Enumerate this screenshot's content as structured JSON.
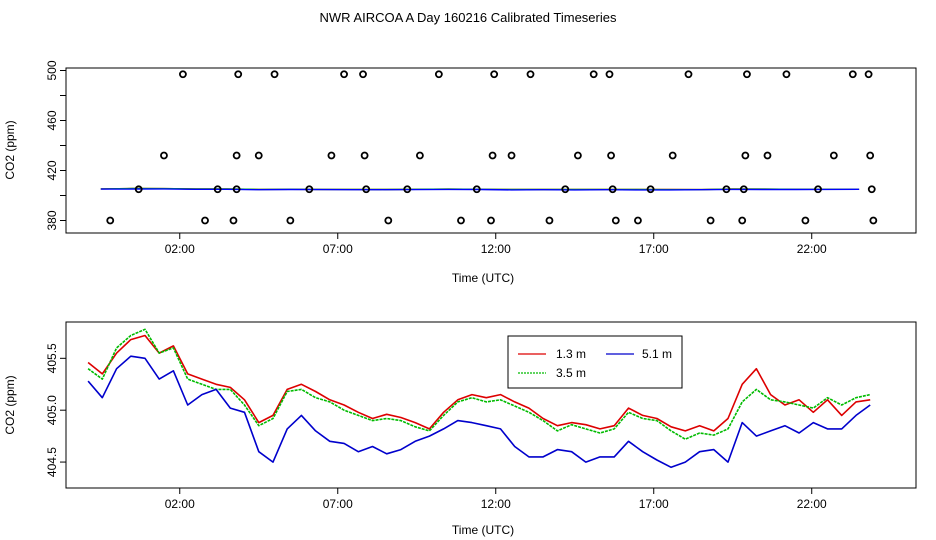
{
  "chart_data": [
    {
      "type": "scatter",
      "title": "NWR AIRCOA A  Day 160216  Calibrated Timeseries",
      "xlabel": "Time (UTC)",
      "ylabel": "CO2 (ppm)",
      "x_unit": "hours UTC",
      "xlim": [
        -1.6,
        25.3
      ],
      "ylim": [
        370,
        502
      ],
      "x_ticks": [
        2,
        7,
        12,
        17,
        22
      ],
      "x_tick_labels": [
        "02:00",
        "07:00",
        "12:00",
        "17:00",
        "22:00"
      ],
      "y_ticks": [
        380,
        420,
        460,
        500
      ],
      "y_tick_labels": [
        "380",
        "420",
        "460",
        "500"
      ],
      "grid": false,
      "series": [
        {
          "color": "#ff0000",
          "style": "line",
          "x": [
            -0.5,
            0.5,
            1.5,
            2.5,
            3.5,
            4.5,
            5.5,
            6.5,
            7.5,
            8.5,
            9.5,
            10.5,
            11.5,
            12.5,
            13.5,
            14.5,
            15.5,
            16.5,
            17.5,
            18.5,
            19.5,
            20.5,
            21.5,
            22.5,
            23.5
          ],
          "y": [
            405.3,
            405.6,
            405.5,
            405.2,
            405.2,
            404.9,
            405.0,
            404.9,
            404.9,
            404.8,
            405.0,
            405.1,
            405.0,
            404.9,
            404.8,
            404.8,
            404.9,
            404.8,
            404.8,
            404.7,
            405.3,
            405.1,
            405.0,
            405.0,
            405.0
          ]
        },
        {
          "color": "#00cc00",
          "style": "line",
          "x": [
            -0.5,
            0.5,
            1.5,
            2.5,
            3.5,
            4.5,
            5.5,
            6.5,
            7.5,
            8.5,
            9.5,
            10.5,
            11.5,
            12.5,
            13.5,
            14.5,
            15.5,
            16.5,
            17.5,
            18.5,
            19.5,
            20.5,
            21.5,
            22.5,
            23.5
          ],
          "y": [
            405.3,
            405.6,
            405.5,
            405.2,
            405.2,
            404.9,
            405.0,
            404.9,
            404.9,
            404.8,
            405.0,
            405.1,
            405.0,
            404.8,
            404.8,
            404.8,
            404.9,
            404.8,
            404.7,
            404.7,
            405.1,
            405.1,
            405.0,
            405.0,
            405.0
          ]
        },
        {
          "color": "#0000ff",
          "style": "line",
          "x": [
            -0.5,
            0.5,
            1.5,
            2.5,
            3.5,
            4.5,
            5.5,
            6.5,
            7.5,
            8.5,
            9.5,
            10.5,
            11.5,
            12.5,
            13.5,
            14.5,
            15.5,
            16.5,
            17.5,
            18.5,
            19.5,
            20.5,
            21.5,
            22.5,
            23.5
          ],
          "y": [
            405.1,
            405.2,
            405.3,
            405.0,
            405.0,
            404.6,
            404.8,
            404.7,
            404.6,
            404.6,
            404.7,
            404.9,
            404.8,
            404.5,
            404.6,
            404.5,
            404.6,
            404.5,
            404.5,
            404.6,
            404.9,
            404.8,
            404.8,
            404.9,
            405.0
          ]
        },
        {
          "color": "#000000",
          "style": "points",
          "marker": "open-circle",
          "x": [
            -0.2,
            0.7,
            1.5,
            2.1,
            2.8,
            3.2,
            3.7,
            3.8,
            3.8,
            3.85,
            4.5,
            5.0,
            5.5,
            6.1,
            6.8,
            7.2,
            7.8,
            7.85,
            7.9,
            8.6,
            9.2,
            9.6,
            10.2,
            10.9,
            11.4,
            11.85,
            11.9,
            11.95,
            12.5,
            13.1,
            13.7,
            14.2,
            14.6,
            15.1,
            15.6,
            15.65,
            15.7,
            15.8,
            16.5,
            16.9,
            17.6,
            18.1,
            18.8,
            19.3,
            19.8,
            19.85,
            19.9,
            19.95,
            20.6,
            21.2,
            21.8,
            22.2,
            22.7,
            23.3,
            23.8,
            23.85,
            23.9,
            23.95
          ],
          "y": [
            380,
            405,
            432,
            497,
            380,
            405,
            380,
            405,
            432,
            497,
            432,
            497,
            380,
            405,
            432,
            497,
            497,
            432,
            405,
            380,
            405,
            432,
            497,
            380,
            405,
            380,
            432,
            497,
            432,
            497,
            380,
            405,
            432,
            497,
            497,
            432,
            405,
            380,
            380,
            405,
            432,
            497,
            380,
            405,
            380,
            405,
            432,
            497,
            432,
            497,
            380,
            405,
            432,
            497,
            497,
            432,
            405,
            380
          ]
        }
      ]
    },
    {
      "type": "line",
      "title": "",
      "xlabel": "Time (UTC)",
      "ylabel": "CO2 (ppm)",
      "x_unit": "hours UTC",
      "xlim": [
        -1.6,
        25.3
      ],
      "ylim": [
        404.25,
        405.85
      ],
      "x_ticks": [
        2,
        7,
        12,
        17,
        22
      ],
      "x_tick_labels": [
        "02:00",
        "07:00",
        "12:00",
        "17:00",
        "22:00"
      ],
      "y_ticks": [
        404.5,
        405.0,
        405.5
      ],
      "y_tick_labels": [
        "404.5",
        "405.0",
        "405.5"
      ],
      "grid": false,
      "legend": "top-right",
      "series": [
        {
          "name": "1.3 m",
          "color": "#dd0000",
          "x": [
            -0.9,
            -0.45,
            0.0,
            0.45,
            0.9,
            1.35,
            1.8,
            2.25,
            2.7,
            3.15,
            3.6,
            4.05,
            4.5,
            4.95,
            5.4,
            5.85,
            6.3,
            6.75,
            7.2,
            7.65,
            8.1,
            8.55,
            9.0,
            9.45,
            9.9,
            10.35,
            10.8,
            11.25,
            11.7,
            12.15,
            12.6,
            13.05,
            13.5,
            13.95,
            14.4,
            14.85,
            15.3,
            15.75,
            16.2,
            16.65,
            17.1,
            17.55,
            18.0,
            18.45,
            18.9,
            19.35,
            19.8,
            20.25,
            20.7,
            21.15,
            21.6,
            22.05,
            22.5,
            22.95,
            23.4,
            23.85
          ],
          "y": [
            405.46,
            405.35,
            405.55,
            405.68,
            405.72,
            405.55,
            405.62,
            405.35,
            405.3,
            405.25,
            405.22,
            405.1,
            404.88,
            404.95,
            405.2,
            405.25,
            405.18,
            405.1,
            405.05,
            404.98,
            404.92,
            404.96,
            404.93,
            404.88,
            404.82,
            404.98,
            405.1,
            405.15,
            405.12,
            405.15,
            405.08,
            405.02,
            404.92,
            404.85,
            404.88,
            404.86,
            404.82,
            404.85,
            405.02,
            404.95,
            404.92,
            404.84,
            404.8,
            404.85,
            404.8,
            404.92,
            405.25,
            405.4,
            405.15,
            405.05,
            405.1,
            404.98,
            405.1,
            404.95,
            405.08,
            405.1
          ]
        },
        {
          "name": "3.5 m",
          "color": "#00bb00",
          "x": [
            -0.9,
            -0.45,
            0.0,
            0.45,
            0.9,
            1.35,
            1.8,
            2.25,
            2.7,
            3.15,
            3.6,
            4.05,
            4.5,
            4.95,
            5.4,
            5.85,
            6.3,
            6.75,
            7.2,
            7.65,
            8.1,
            8.55,
            9.0,
            9.45,
            9.9,
            10.35,
            10.8,
            11.25,
            11.7,
            12.15,
            12.6,
            13.05,
            13.5,
            13.95,
            14.4,
            14.85,
            15.3,
            15.75,
            16.2,
            16.65,
            17.1,
            17.55,
            18.0,
            18.45,
            18.9,
            19.35,
            19.8,
            20.25,
            20.7,
            21.15,
            21.6,
            22.05,
            22.5,
            22.95,
            23.4,
            23.85
          ],
          "y": [
            405.4,
            405.3,
            405.6,
            405.72,
            405.78,
            405.55,
            405.6,
            405.3,
            405.25,
            405.2,
            405.2,
            405.05,
            404.85,
            404.92,
            405.18,
            405.2,
            405.12,
            405.08,
            405.0,
            404.95,
            404.9,
            404.92,
            404.9,
            404.84,
            404.8,
            404.95,
            405.08,
            405.12,
            405.08,
            405.1,
            405.04,
            404.98,
            404.9,
            404.8,
            404.86,
            404.82,
            404.78,
            404.82,
            404.98,
            404.92,
            404.9,
            404.8,
            404.72,
            404.78,
            404.76,
            404.82,
            405.08,
            405.2,
            405.1,
            405.08,
            405.05,
            405.02,
            405.12,
            405.05,
            405.12,
            405.15
          ]
        },
        {
          "name": "5.1 m",
          "color": "#0000cc",
          "x": [
            -0.9,
            -0.45,
            0.0,
            0.45,
            0.9,
            1.35,
            1.8,
            2.25,
            2.7,
            3.15,
            3.6,
            4.05,
            4.5,
            4.95,
            5.4,
            5.85,
            6.3,
            6.75,
            7.2,
            7.65,
            8.1,
            8.55,
            9.0,
            9.45,
            9.9,
            10.35,
            10.8,
            11.25,
            11.7,
            12.15,
            12.6,
            13.05,
            13.5,
            13.95,
            14.4,
            14.85,
            15.3,
            15.75,
            16.2,
            16.65,
            17.1,
            17.55,
            18.0,
            18.45,
            18.9,
            19.35,
            19.8,
            20.25,
            20.7,
            21.15,
            21.6,
            22.05,
            22.5,
            22.95,
            23.4,
            23.85
          ],
          "y": [
            405.28,
            405.12,
            405.4,
            405.52,
            405.5,
            405.3,
            405.38,
            405.05,
            405.15,
            405.2,
            405.02,
            404.98,
            404.6,
            404.5,
            404.82,
            404.95,
            404.8,
            404.7,
            404.68,
            404.6,
            404.65,
            404.58,
            404.62,
            404.7,
            404.75,
            404.82,
            404.9,
            404.88,
            404.85,
            404.82,
            404.65,
            404.55,
            404.55,
            404.62,
            404.6,
            404.5,
            404.55,
            404.55,
            404.7,
            404.6,
            404.52,
            404.45,
            404.5,
            404.6,
            404.62,
            404.5,
            404.88,
            404.75,
            404.8,
            404.85,
            404.78,
            404.88,
            404.82,
            404.82,
            404.95,
            405.05
          ]
        }
      ]
    }
  ]
}
